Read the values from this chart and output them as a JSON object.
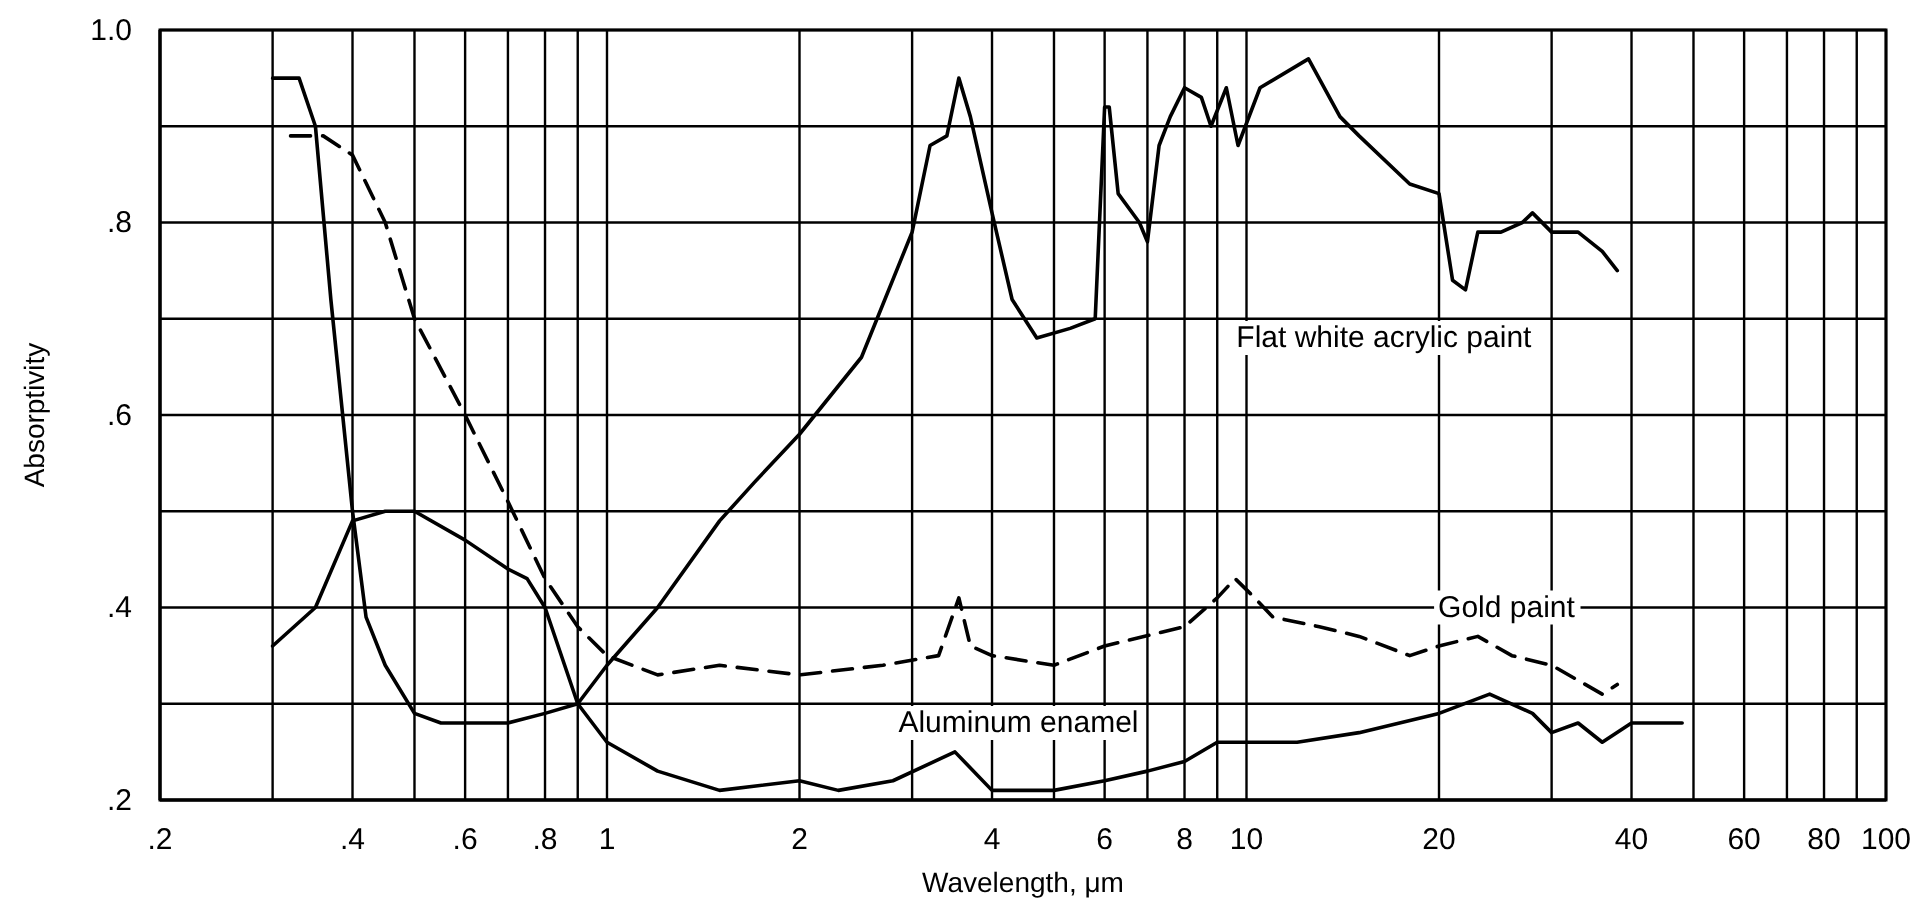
{
  "chart_data": {
    "type": "line",
    "xlabel": "Wavelength, μm",
    "ylabel": "Absorptivity",
    "log": "x",
    "grid": true,
    "marker": "none",
    "xlim": [
      0.2,
      100
    ],
    "ylim": [
      0.2,
      1.0
    ],
    "xticks": [
      {
        "value": 0.2,
        "label": ".2"
      },
      {
        "value": 0.3,
        "label": null
      },
      {
        "value": 0.4,
        "label": ".4"
      },
      {
        "value": 0.5,
        "label": null
      },
      {
        "value": 0.6,
        "label": ".6"
      },
      {
        "value": 0.7,
        "label": null
      },
      {
        "value": 0.8,
        "label": ".8"
      },
      {
        "value": 0.9,
        "label": null
      },
      1,
      2,
      {
        "value": 3,
        "label": null
      },
      4,
      {
        "value": 5,
        "label": null
      },
      6,
      {
        "value": 7,
        "label": null
      },
      8,
      {
        "value": 9,
        "label": null
      },
      10,
      20,
      {
        "value": 30,
        "label": null
      },
      40,
      {
        "value": 50,
        "label": null
      },
      60,
      {
        "value": 70,
        "label": null
      },
      80,
      {
        "value": 90,
        "label": null
      },
      100
    ],
    "yticks": [
      {
        "value": 0.2,
        "label": ".2"
      },
      {
        "value": 0.3,
        "label": null
      },
      {
        "value": 0.4,
        "label": ".4"
      },
      {
        "value": 0.5,
        "label": null
      },
      {
        "value": 0.6,
        "label": ".6"
      },
      {
        "value": 0.7,
        "label": null
      },
      {
        "value": 0.8,
        "label": ".8"
      },
      {
        "value": 0.9,
        "label": null
      },
      {
        "value": 1.0,
        "label": "1.0"
      }
    ],
    "series": [
      {
        "name": "Flat white acrylic paint",
        "color": "#000000",
        "line_style": "solid",
        "x": [
          0.3,
          0.33,
          0.35,
          0.37,
          0.4,
          0.42,
          0.45,
          0.5,
          0.55,
          0.6,
          0.7,
          0.8,
          0.9,
          1.0,
          1.2,
          1.5,
          1.7,
          2.0,
          2.5,
          3.0,
          3.2,
          3.4,
          3.55,
          3.7,
          4.0,
          4.3,
          4.7,
          5.3,
          5.8,
          6.0,
          6.1,
          6.3,
          6.8,
          7.0,
          7.3,
          7.6,
          8.0,
          8.5,
          8.8,
          9.3,
          9.7,
          10.5,
          12.5,
          14,
          15,
          18,
          20,
          21,
          22,
          23,
          25,
          27,
          28,
          30,
          33,
          36,
          38
        ],
        "values": [
          0.95,
          0.95,
          0.9,
          0.72,
          0.5,
          0.39,
          0.34,
          0.29,
          0.28,
          0.28,
          0.28,
          0.29,
          0.3,
          0.34,
          0.4,
          0.49,
          0.53,
          0.58,
          0.66,
          0.79,
          0.88,
          0.89,
          0.95,
          0.91,
          0.81,
          0.72,
          0.68,
          0.69,
          0.7,
          0.92,
          0.92,
          0.83,
          0.8,
          0.78,
          0.88,
          0.91,
          0.94,
          0.93,
          0.9,
          0.94,
          0.88,
          0.94,
          0.97,
          0.91,
          0.89,
          0.84,
          0.83,
          0.74,
          0.73,
          0.79,
          0.79,
          0.8,
          0.81,
          0.79,
          0.79,
          0.77,
          0.75
        ]
      },
      {
        "name": "Gold paint",
        "color": "#000000",
        "line_style": "dashed",
        "x": [
          0.32,
          0.36,
          0.4,
          0.45,
          0.5,
          0.6,
          0.7,
          0.8,
          0.9,
          1.0,
          1.2,
          1.5,
          2,
          2.7,
          3.3,
          3.55,
          3.7,
          4,
          5,
          6,
          8,
          9,
          9.6,
          10.3,
          11,
          13,
          15,
          18,
          20,
          23,
          26,
          30,
          36,
          38
        ],
        "values": [
          0.89,
          0.89,
          0.87,
          0.8,
          0.7,
          0.6,
          0.51,
          0.43,
          0.38,
          0.35,
          0.33,
          0.34,
          0.33,
          0.34,
          0.35,
          0.41,
          0.36,
          0.35,
          0.34,
          0.36,
          0.38,
          0.41,
          0.43,
          0.41,
          0.39,
          0.38,
          0.37,
          0.35,
          0.36,
          0.37,
          0.35,
          0.34,
          0.31,
          0.32
        ]
      },
      {
        "name": "Aluminum enamel",
        "color": "#000000",
        "line_style": "solid",
        "x": [
          0.3,
          0.35,
          0.4,
          0.45,
          0.5,
          0.6,
          0.7,
          0.75,
          0.8,
          0.9,
          1.0,
          1.2,
          1.5,
          2.0,
          2.3,
          2.8,
          3.5,
          4,
          5,
          6,
          7,
          8,
          9,
          10,
          12,
          15,
          20,
          24,
          28,
          30,
          33,
          36,
          40,
          48
        ],
        "values": [
          0.36,
          0.4,
          0.49,
          0.5,
          0.5,
          0.47,
          0.44,
          0.43,
          0.4,
          0.3,
          0.26,
          0.23,
          0.21,
          0.22,
          0.21,
          0.22,
          0.25,
          0.21,
          0.21,
          0.22,
          0.23,
          0.24,
          0.26,
          0.26,
          0.26,
          0.27,
          0.29,
          0.31,
          0.29,
          0.27,
          0.28,
          0.26,
          0.28,
          0.28
        ]
      }
    ]
  }
}
